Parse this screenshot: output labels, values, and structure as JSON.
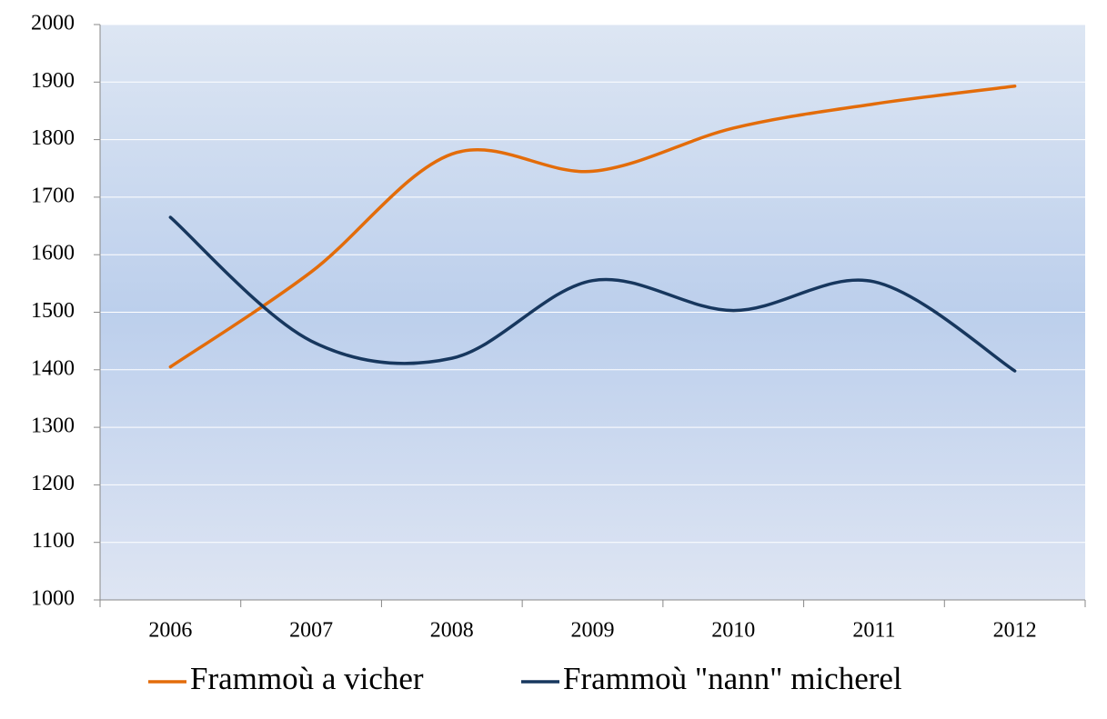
{
  "chart_data": {
    "type": "line",
    "categories": [
      "2006",
      "2007",
      "2008",
      "2009",
      "2010",
      "2011",
      "2012"
    ],
    "series": [
      {
        "name": "Frammoù a vicher",
        "color": "#e36c0a",
        "values": [
          1405,
          1570,
          1775,
          1745,
          1820,
          1862,
          1893
        ]
      },
      {
        "name": "Frammoù \"nann\" micherel",
        "color": "#17375e",
        "values": [
          1665,
          1450,
          1420,
          1555,
          1503,
          1553,
          1398
        ]
      }
    ],
    "ylim": [
      1000,
      2000
    ],
    "yticks": [
      1000,
      1100,
      1200,
      1300,
      1400,
      1500,
      1600,
      1700,
      1800,
      1900,
      2000
    ],
    "grid": true,
    "smooth": true,
    "legend": "bottom"
  }
}
